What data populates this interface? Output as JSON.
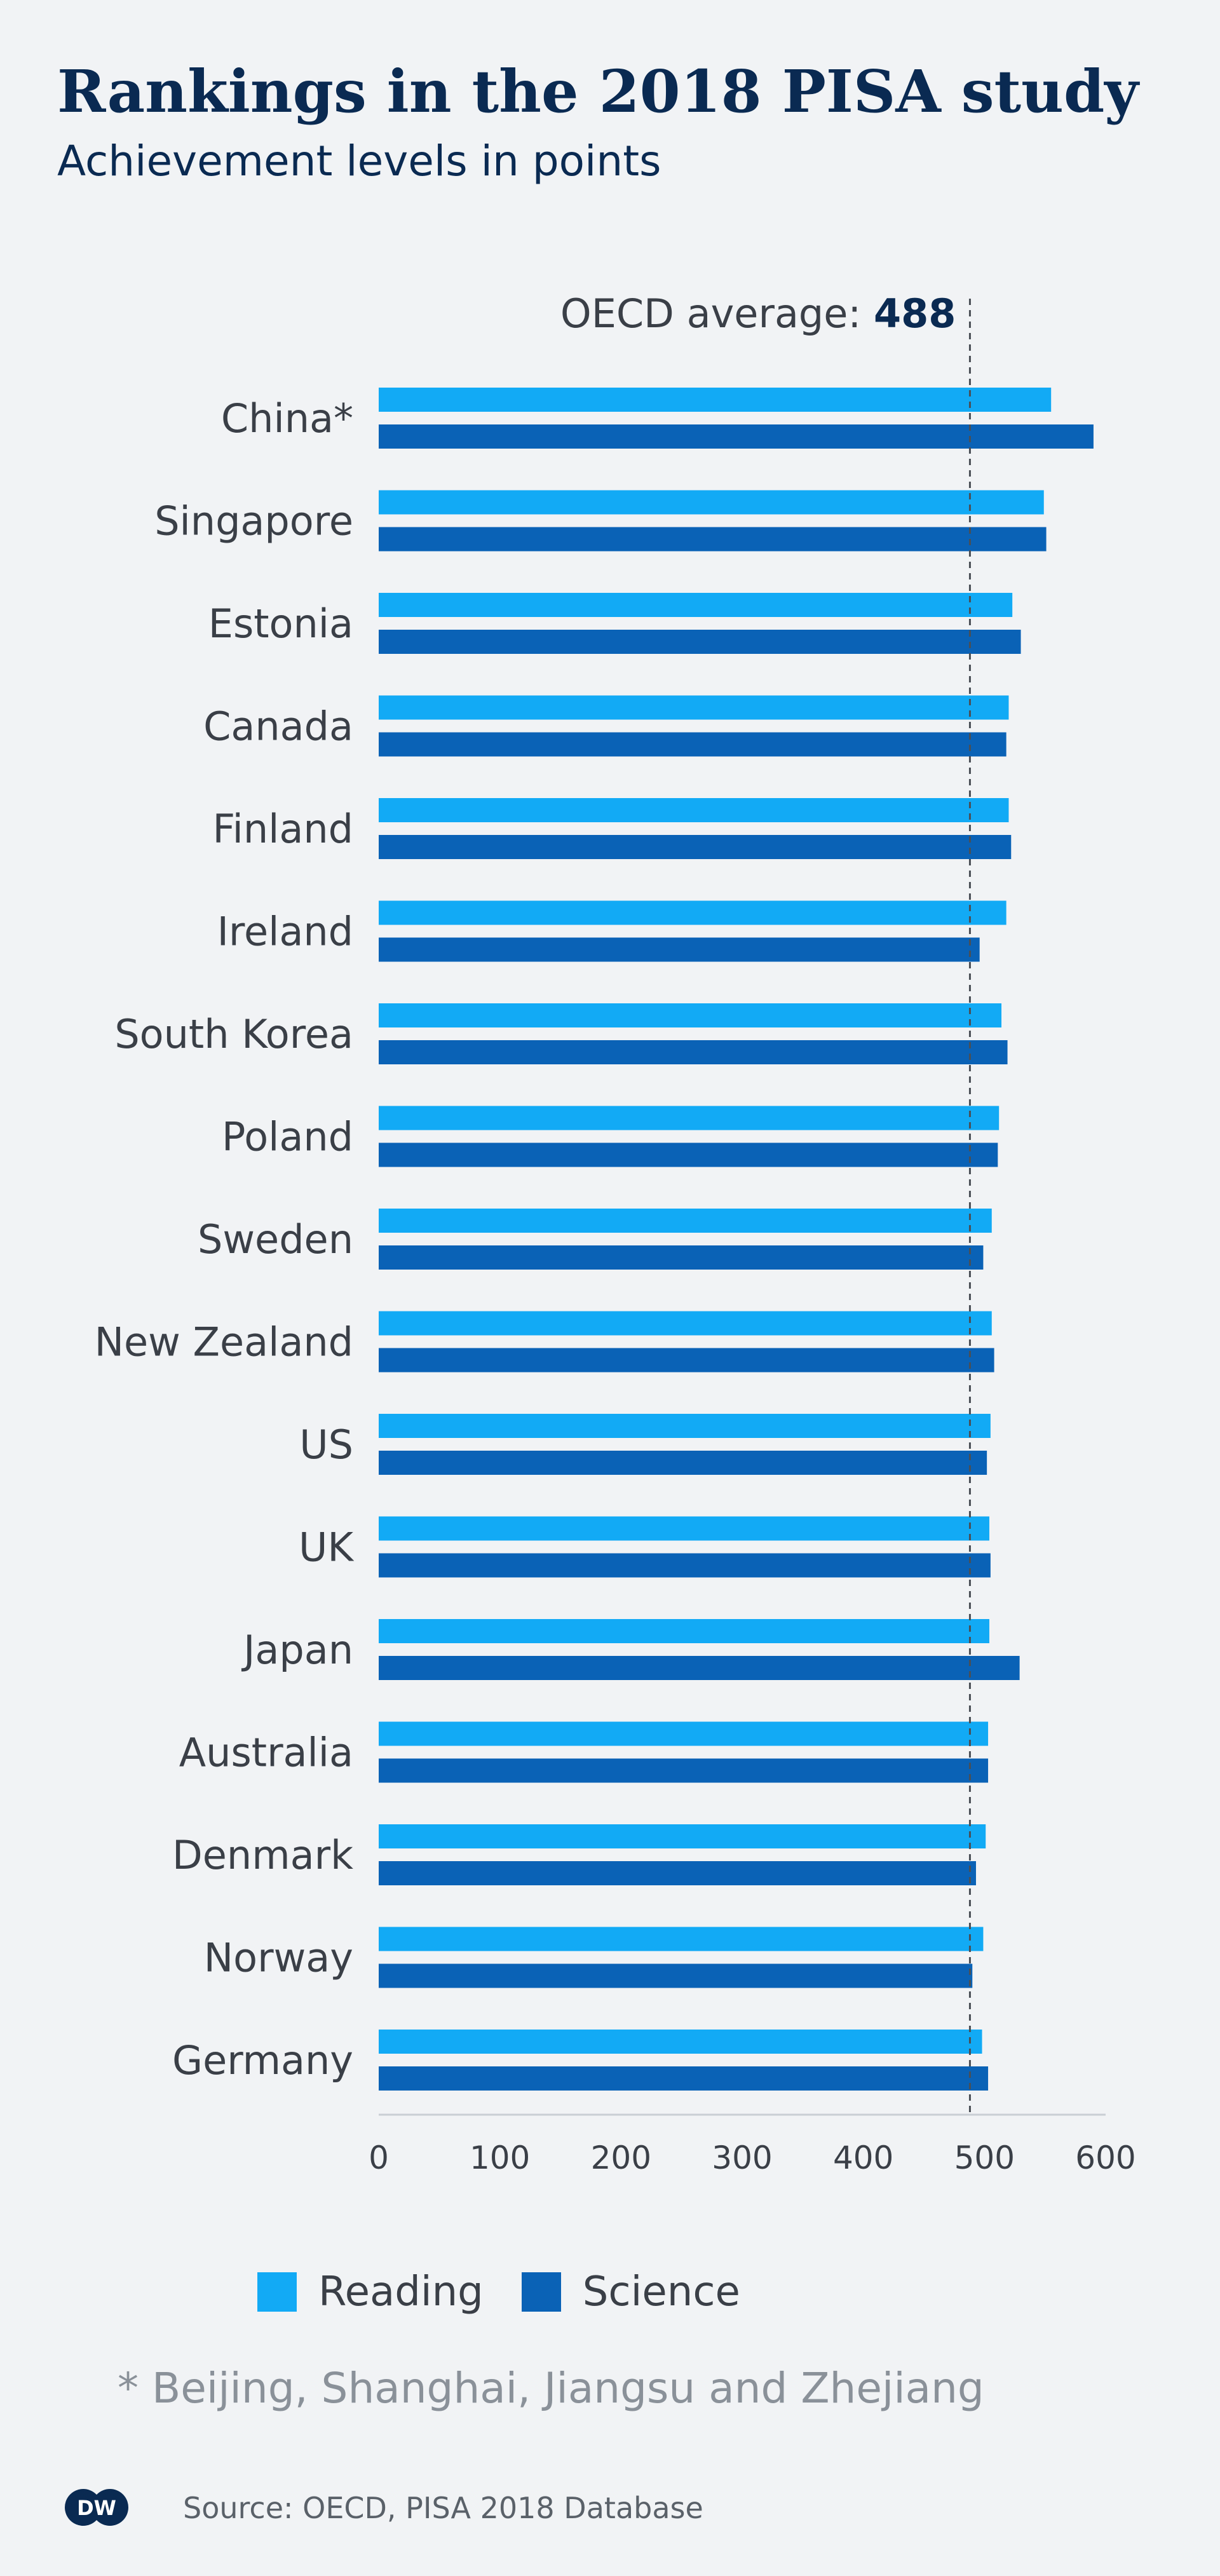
{
  "header": {
    "title": "Rankings in the 2018 PISA study",
    "subtitle": "Achievement levels in points"
  },
  "colors": {
    "reading": "#12aaf5",
    "science": "#0a62b6"
  },
  "chart_data": {
    "type": "bar",
    "orientation": "horizontal",
    "title": "Rankings in the 2018 PISA study",
    "subtitle": "Achievement levels in points",
    "categories": [
      "China*",
      "Singapore",
      "Estonia",
      "Canada",
      "Finland",
      "Ireland",
      "South Korea",
      "Poland",
      "Sweden",
      "New Zealand",
      "US",
      "UK",
      "Japan",
      "Australia",
      "Denmark",
      "Norway",
      "Germany"
    ],
    "series": [
      {
        "name": "Reading",
        "values": [
          555,
          549,
          523,
          520,
          520,
          518,
          514,
          512,
          506,
          506,
          505,
          504,
          504,
          503,
          501,
          499,
          498
        ]
      },
      {
        "name": "Science",
        "values": [
          590,
          551,
          530,
          518,
          522,
          496,
          519,
          511,
          499,
          508,
          502,
          505,
          529,
          503,
          493,
          490,
          503
        ]
      }
    ],
    "xlim": [
      0,
      600
    ],
    "xticks": [
      0,
      100,
      200,
      300,
      400,
      500,
      600
    ],
    "reference_line": {
      "label": "OECD average:",
      "value": 488
    },
    "legend": [
      "Reading",
      "Science"
    ],
    "legend_position": "bottom",
    "grid": false
  },
  "footnote": "* Beijing, Shanghai, Jiangsu and Zhejiang",
  "source": "Source: OECD, PISA 2018 Database",
  "logo_text": "DW"
}
